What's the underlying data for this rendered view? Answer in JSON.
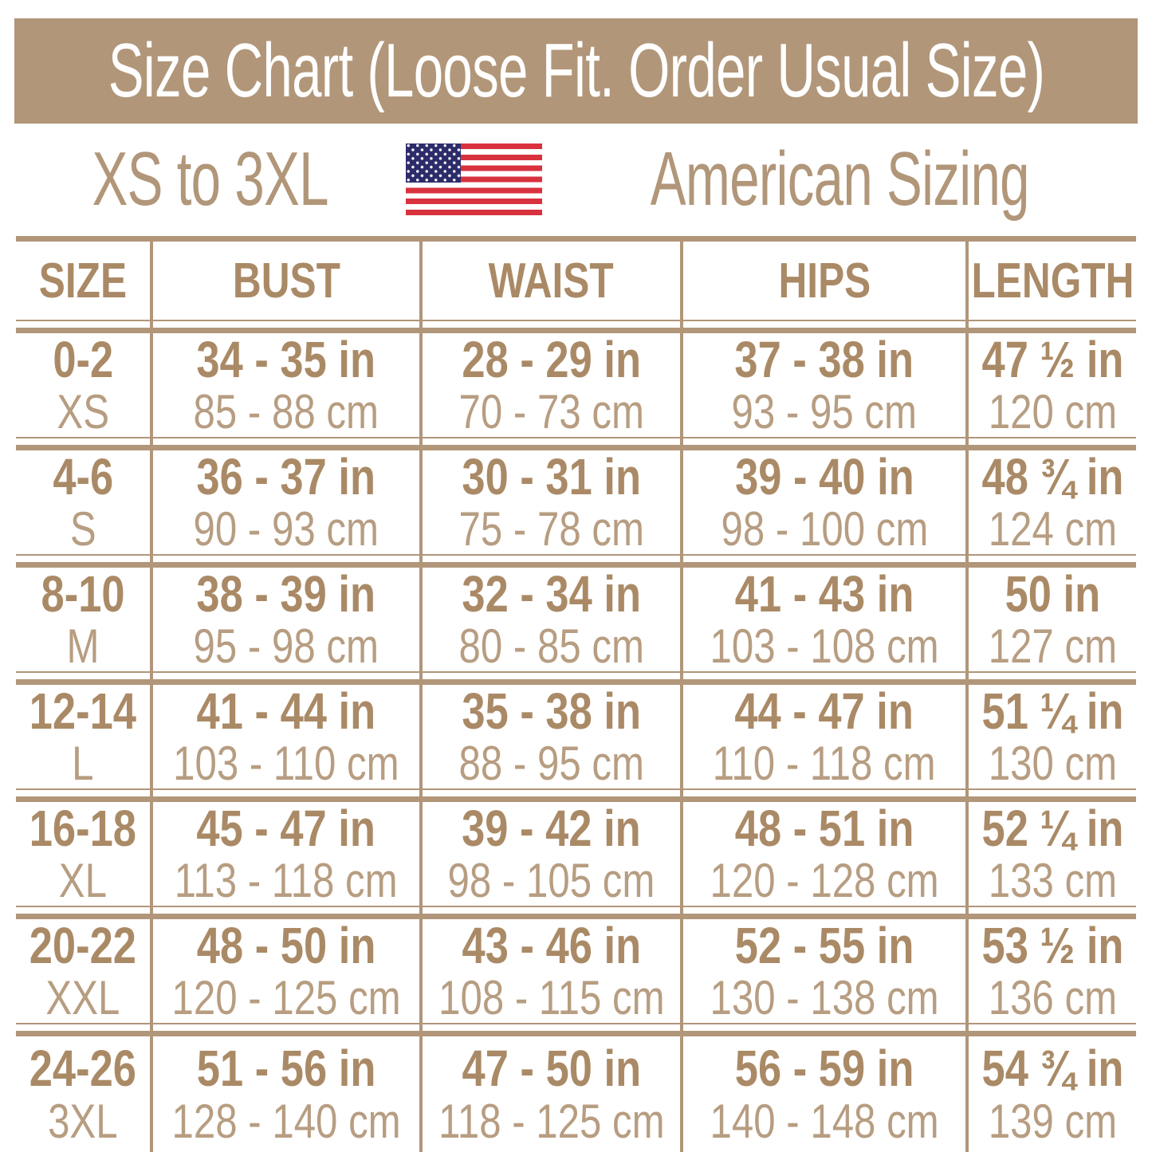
{
  "title": "Size Chart (Loose Fit. Order Usual Size)",
  "subtitle": {
    "left": "XS to 3XL",
    "right": "American Sizing",
    "flag_icon": "us-flag-icon"
  },
  "colors": {
    "tan": "#b19679",
    "tan-bold": "#aa8a66",
    "tan-light": "#b79d81",
    "flag-red": "#d8323e",
    "flag-blue": "#2d2c6a",
    "white": "#ffffff"
  },
  "table": {
    "columns": [
      "SIZE",
      "BUST",
      "WAIST",
      "HIPS",
      "LENGTH"
    ],
    "rows": [
      {
        "size": "0-2",
        "label": "XS",
        "bust_in": "34 - 35 in",
        "bust_cm": "85 - 88 cm",
        "waist_in": "28 - 29 in",
        "waist_cm": "70 - 73 cm",
        "hips_in": "37 - 38 in",
        "hips_cm": "93 - 95 cm",
        "len_in": "47 ½ in",
        "len_cm": "120 cm"
      },
      {
        "size": "4-6",
        "label": "S",
        "bust_in": "36 - 37 in",
        "bust_cm": "90 - 93 cm",
        "waist_in": "30 - 31 in",
        "waist_cm": "75 - 78 cm",
        "hips_in": "39 - 40 in",
        "hips_cm": "98 - 100 cm",
        "len_in": "48 ¾ in",
        "len_cm": "124 cm"
      },
      {
        "size": "8-10",
        "label": "M",
        "bust_in": "38 - 39 in",
        "bust_cm": "95 - 98 cm",
        "waist_in": "32 - 34 in",
        "waist_cm": "80 - 85 cm",
        "hips_in": "41 - 43 in",
        "hips_cm": "103 - 108 cm",
        "len_in": "50 in",
        "len_cm": "127 cm"
      },
      {
        "size": "12-14",
        "label": "L",
        "bust_in": "41 - 44 in",
        "bust_cm": "103 - 110 cm",
        "waist_in": "35 - 38 in",
        "waist_cm": "88 - 95 cm",
        "hips_in": "44 - 47 in",
        "hips_cm": "110 - 118 cm",
        "len_in": "51 ¼ in",
        "len_cm": "130 cm"
      },
      {
        "size": "16-18",
        "label": "XL",
        "bust_in": "45 - 47 in",
        "bust_cm": "113 - 118 cm",
        "waist_in": "39 - 42 in",
        "waist_cm": "98 - 105 cm",
        "hips_in": "48 - 51 in",
        "hips_cm": "120 - 128 cm",
        "len_in": "52 ¼ in",
        "len_cm": "133 cm"
      },
      {
        "size": "20-22",
        "label": "XXL",
        "bust_in": "48 - 50 in",
        "bust_cm": "120 - 125 cm",
        "waist_in": "43 - 46 in",
        "waist_cm": "108 - 115 cm",
        "hips_in": "52 - 55 in",
        "hips_cm": "130 - 138 cm",
        "len_in": "53 ½ in",
        "len_cm": "136 cm"
      },
      {
        "size": "24-26",
        "label": "3XL",
        "bust_in": "51 - 56 in",
        "bust_cm": "128 - 140 cm",
        "waist_in": "47 - 50 in",
        "waist_cm": "118 - 125 cm",
        "hips_in": "56 - 59 in",
        "hips_cm": "140 - 148 cm",
        "len_in": "54 ¾ in",
        "len_cm": "139 cm"
      }
    ]
  },
  "chart_data": {
    "type": "table",
    "title": "Size Chart (Loose Fit. Order Usual Size)",
    "subtitle": "XS to 3XL — American Sizing",
    "columns": [
      "SIZE",
      "BUST",
      "WAIST",
      "HIPS",
      "LENGTH"
    ],
    "rows": [
      [
        "0-2 / XS",
        "34 - 35 in / 85 - 88 cm",
        "28 - 29 in / 70 - 73 cm",
        "37 - 38 in / 93 - 95 cm",
        "47 ½ in / 120 cm"
      ],
      [
        "4-6 / S",
        "36 - 37 in / 90 - 93 cm",
        "30 - 31 in / 75 - 78 cm",
        "39 - 40 in / 98 - 100 cm",
        "48 ¾ in / 124 cm"
      ],
      [
        "8-10 / M",
        "38 - 39 in / 95 - 98 cm",
        "32 - 34 in / 80 - 85 cm",
        "41 - 43 in / 103 - 108 cm",
        "50 in / 127 cm"
      ],
      [
        "12-14 / L",
        "41 - 44 in / 103 - 110 cm",
        "35 - 38 in / 88 - 95 cm",
        "44 - 47 in / 110 - 118 cm",
        "51 ¼ in / 130 cm"
      ],
      [
        "16-18 / XL",
        "45 - 47 in / 113 - 118 cm",
        "39 - 42 in / 98 - 105 cm",
        "48 - 51 in / 120 - 128 cm",
        "52 ¼ in / 133 cm"
      ],
      [
        "20-22 / XXL",
        "48 - 50 in / 120 - 125 cm",
        "43 - 46 in / 108 - 115 cm",
        "52 - 55 in / 130 - 138 cm",
        "53 ½ in / 136 cm"
      ],
      [
        "24-26 / 3XL",
        "51 - 56 in / 128 - 140 cm",
        "47 - 50 in / 118 - 125 cm",
        "56 - 59 in / 140 - 148 cm",
        "54 ¾ in / 139 cm"
      ]
    ]
  }
}
